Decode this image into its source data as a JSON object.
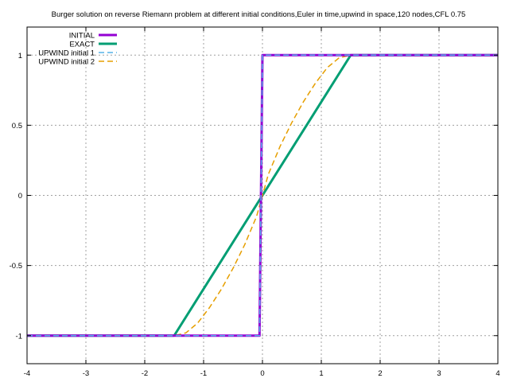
{
  "chart_data": {
    "type": "line",
    "title": "Burger solution on reverse Riemann problem at different initial conditions,Euler in time,upwind in space,120 nodes,CFL 0.75",
    "xlabel": "",
    "ylabel": "",
    "xlim": [
      -4,
      4
    ],
    "ylim": [
      -1.2,
      1.2
    ],
    "x_ticks": [
      -4,
      -3,
      -2,
      -1,
      0,
      1,
      2,
      3,
      4
    ],
    "y_ticks": [
      -1,
      -0.5,
      0,
      0.5,
      1
    ],
    "grid": true,
    "legend_position": "top-left",
    "series": [
      {
        "name": "INITIAL",
        "color": "#9400d3",
        "style": "solid",
        "x": [
          -4,
          -0.05,
          -0.05,
          0,
          0,
          4
        ],
        "y": [
          -1,
          -1,
          -1,
          1,
          1,
          1
        ]
      },
      {
        "name": "EXACT",
        "color": "#009e73",
        "style": "solid",
        "x": [
          -4,
          -1.5,
          1.5,
          4
        ],
        "y": [
          -1,
          -1,
          1,
          1
        ]
      },
      {
        "name": "UPWIND initial 1",
        "color": "#56b4e9",
        "style": "dashed",
        "x": [
          -4,
          -0.05,
          -0.05,
          0,
          0,
          4
        ],
        "y": [
          -1,
          -1,
          -1,
          1,
          1,
          1
        ]
      },
      {
        "name": "UPWIND initial 2",
        "color": "#e69f00",
        "style": "dashed",
        "x": [
          -4,
          -1.5,
          -1.3,
          -1.1,
          -0.9,
          -0.7,
          -0.5,
          -0.3,
          -0.1,
          0,
          0.1,
          0.3,
          0.5,
          0.7,
          0.9,
          1.1,
          1.3,
          1.5,
          4
        ],
        "y": [
          -1,
          -1,
          -0.98,
          -0.91,
          -0.8,
          -0.67,
          -0.52,
          -0.35,
          -0.15,
          0,
          0.15,
          0.35,
          0.52,
          0.67,
          0.8,
          0.91,
          0.98,
          1,
          1
        ]
      }
    ]
  }
}
